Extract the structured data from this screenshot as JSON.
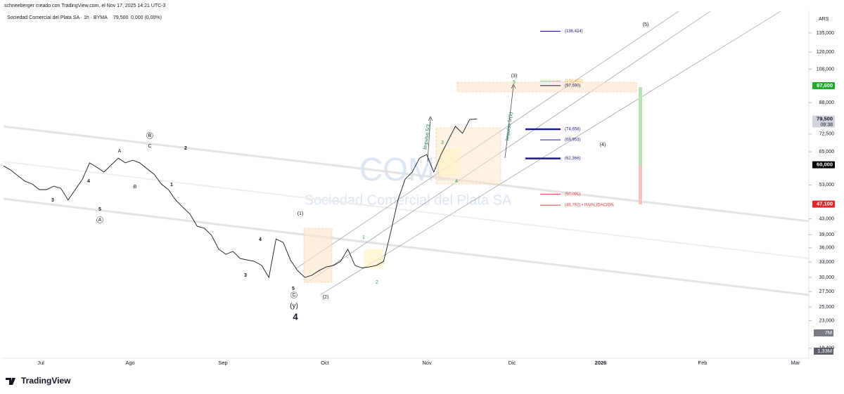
{
  "chart_data": {
    "type": "line",
    "credit": "schneeberger creado con TradingView.com, el Nov 17, 2025 14:21 UTC-3",
    "title": "Sociedad Comercial del Plata SA · 1h · BYMA",
    "last": "79,500",
    "change": "0,000 (0,00%)",
    "currency": "ARS",
    "watermark": "COME",
    "watermark_sub": "Sociedad Comercial del Plata SA",
    "brand": "TradingView",
    "color": "#131722",
    "log_scale": true,
    "ylim": [
      18250,
      155000
    ],
    "yticks": [
      {
        "value": 135000,
        "label": "135,000"
      },
      {
        "value": 120000,
        "label": "120,000"
      },
      {
        "value": 108000,
        "label": "108,000"
      },
      {
        "value": 88000,
        "label": "88,000"
      },
      {
        "value": 72500,
        "label": "72,500"
      },
      {
        "value": 65000,
        "label": "65,000"
      },
      {
        "value": 53000,
        "label": "53,000"
      },
      {
        "value": 43000,
        "label": "43,000"
      },
      {
        "value": 39000,
        "label": "39,000"
      },
      {
        "value": 36000,
        "label": "36,000"
      },
      {
        "value": 33000,
        "label": "33,000"
      },
      {
        "value": 30000,
        "label": "30,000"
      },
      {
        "value": 27500,
        "label": "27,500"
      },
      {
        "value": 25000,
        "label": "25,000"
      },
      {
        "value": 23000,
        "label": "23,000"
      },
      {
        "value": 19400,
        "label": "19,400"
      }
    ],
    "x_labels": [
      "Jul",
      "Ago",
      "Sep",
      "Oct",
      "Nov",
      "Dic",
      "2026",
      "Feb",
      "Mar"
    ],
    "values": [
      59600,
      58100,
      56100,
      54200,
      53300,
      51500,
      51500,
      52600,
      51900,
      48300,
      51500,
      54900,
      60700,
      59100,
      57400,
      59900,
      62500,
      60700,
      61700,
      60700,
      58600,
      56600,
      53300,
      51500,
      48300,
      46200,
      44300,
      41100,
      40600,
      38900,
      35700,
      34600,
      35200,
      33700,
      33400,
      33100,
      32300,
      30000,
      38000,
      37200,
      33400,
      31300,
      30000,
      30400,
      31300,
      32000,
      32300,
      33100,
      35700,
      32300,
      31800,
      32000,
      32300,
      33100,
      39700,
      48300,
      54900,
      57400,
      62500,
      63900,
      57400,
      63900,
      69700,
      76000,
      72800,
      79300,
      79500
    ],
    "levels": [
      {
        "value": 136424,
        "label": "(136,424)",
        "color": "#1a1a8c"
      },
      {
        "value": 100402,
        "label": "(100,402)",
        "color": "#f5a623"
      },
      {
        "value": 97690,
        "label": "(97,690)",
        "color": "#1a1a4c"
      },
      {
        "value": 74658,
        "label": "(74,658)",
        "color": "#1a1a8c"
      },
      {
        "value": 69953,
        "label": "(69,953)",
        "color": "#1a1a8c"
      },
      {
        "value": 62366,
        "label": "(62,366)",
        "color": "#1a1a8c"
      },
      {
        "value": 50091,
        "label": "(50,091)",
        "color": "#e53935"
      },
      {
        "value": 46792,
        "label": "(46,792) • INVALIDACIÓN",
        "color": "#e53935"
      }
    ],
    "price_tags": [
      {
        "value": 97600,
        "label": "97,600",
        "color": "#22a82a"
      },
      {
        "value": 79500,
        "label": "79,500",
        "sub": "08:38",
        "color": "#d1d4dc"
      },
      {
        "value": 60000,
        "label": "60,000",
        "color": "#000000"
      },
      {
        "value": 47100,
        "label": "47,100",
        "color": "#e0262b"
      }
    ],
    "volume_tags": [
      "7M",
      "1,33M"
    ],
    "annotations": [
      "B",
      "A",
      "C",
      "2",
      "B",
      "1",
      "4",
      "3",
      "5",
      "A",
      "(1)",
      "4",
      "3",
      "5",
      "C",
      "(y)",
      "4",
      "(2)",
      "1",
      "2",
      "3",
      "4",
      "5",
      "(3)",
      "(4)",
      "(5)",
      "Impulso 5/3",
      "Impulso 5/(1)"
    ]
  }
}
